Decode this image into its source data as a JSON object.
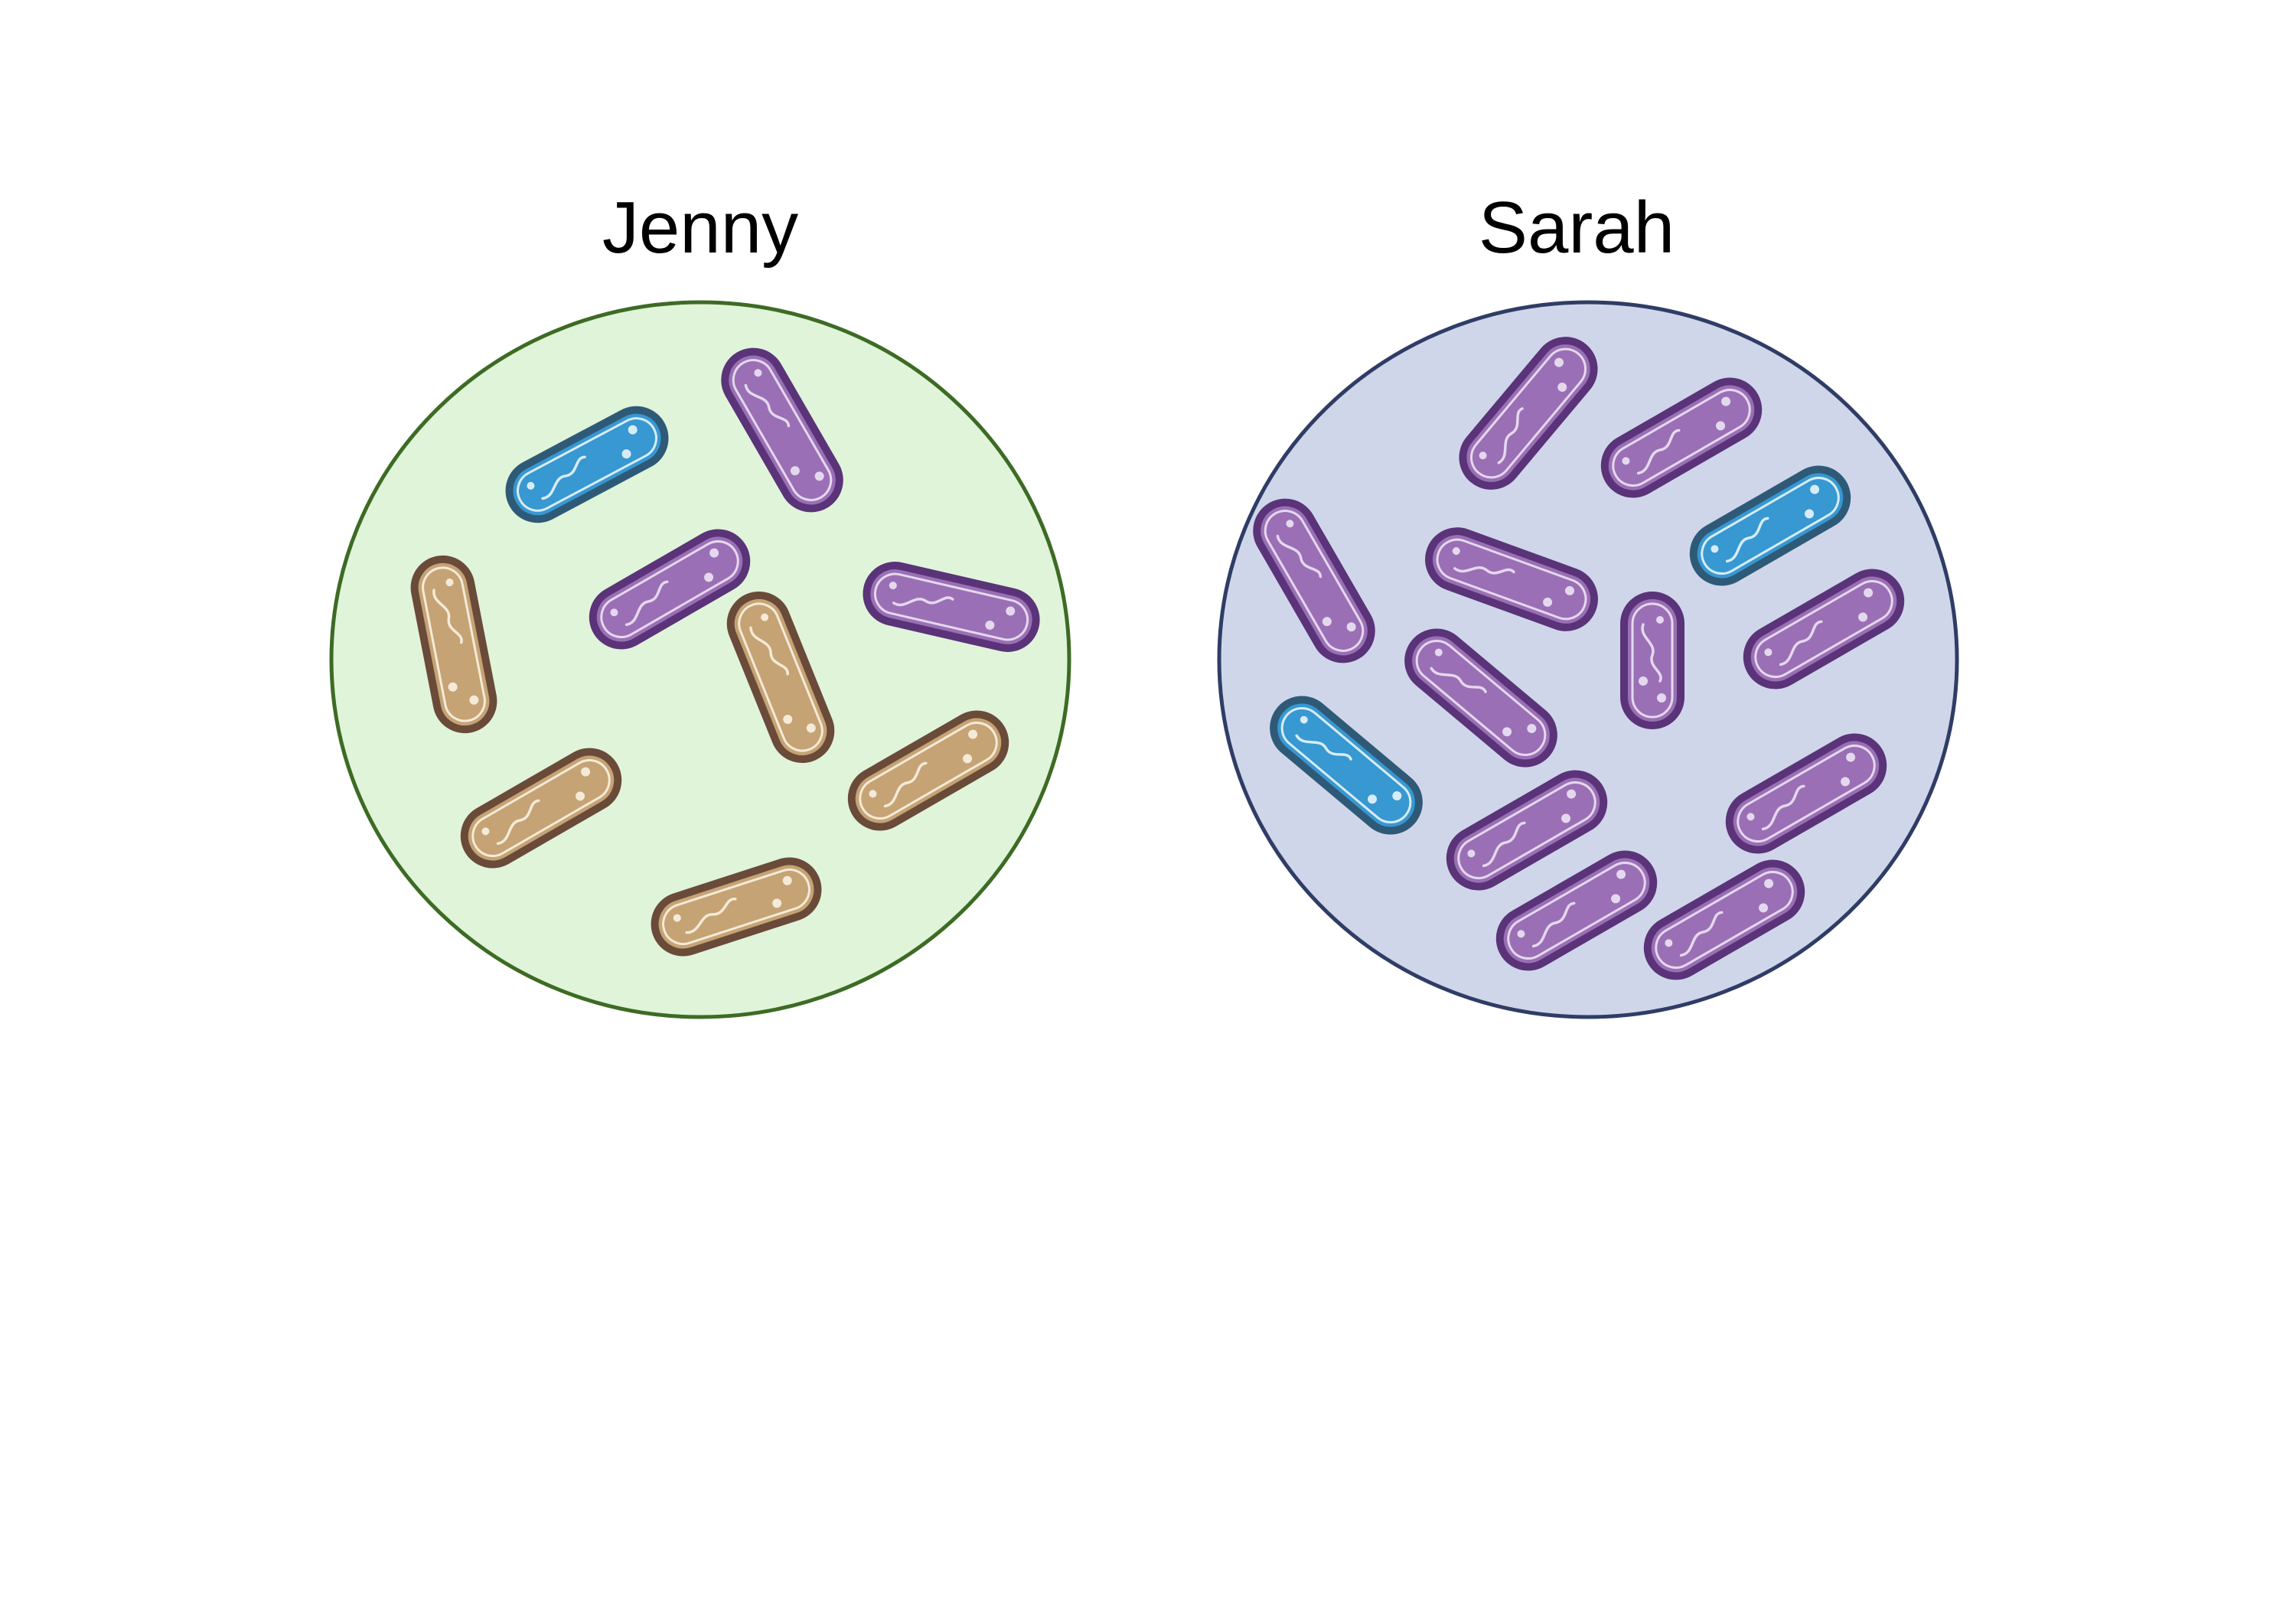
{
  "groups": [
    {
      "label": "Jenny",
      "dish_fill": "#e0f4da",
      "dish_stroke": "#3d6b24",
      "bacteria": [
        {
          "type": "blue"
        },
        {
          "type": "purple"
        },
        {
          "type": "tan"
        },
        {
          "type": "purple"
        },
        {
          "type": "tan"
        },
        {
          "type": "purple"
        },
        {
          "type": "tan"
        },
        {
          "type": "tan"
        },
        {
          "type": "tan"
        }
      ]
    },
    {
      "label": "Sarah",
      "dish_fill": "#d0d6ea",
      "dish_stroke": "#2f3d66",
      "bacteria": [
        {
          "type": "purple"
        },
        {
          "type": "purple"
        },
        {
          "type": "blue"
        },
        {
          "type": "purple"
        },
        {
          "type": "purple"
        },
        {
          "type": "purple"
        },
        {
          "type": "purple"
        },
        {
          "type": "purple"
        },
        {
          "type": "blue"
        },
        {
          "type": "purple"
        },
        {
          "type": "purple"
        },
        {
          "type": "purple"
        },
        {
          "type": "purple"
        }
      ]
    }
  ],
  "bacteria_colors": {
    "purple": {
      "outer": "#5a3379",
      "fill": "#9b6fb5",
      "line": "#e4d8ee"
    },
    "blue": {
      "outer": "#2e5a78",
      "fill": "#3798d2",
      "line": "#d8ecf7"
    },
    "tan": {
      "outer": "#6a4a38",
      "fill": "#c6a374",
      "line": "#f4ead8"
    }
  }
}
